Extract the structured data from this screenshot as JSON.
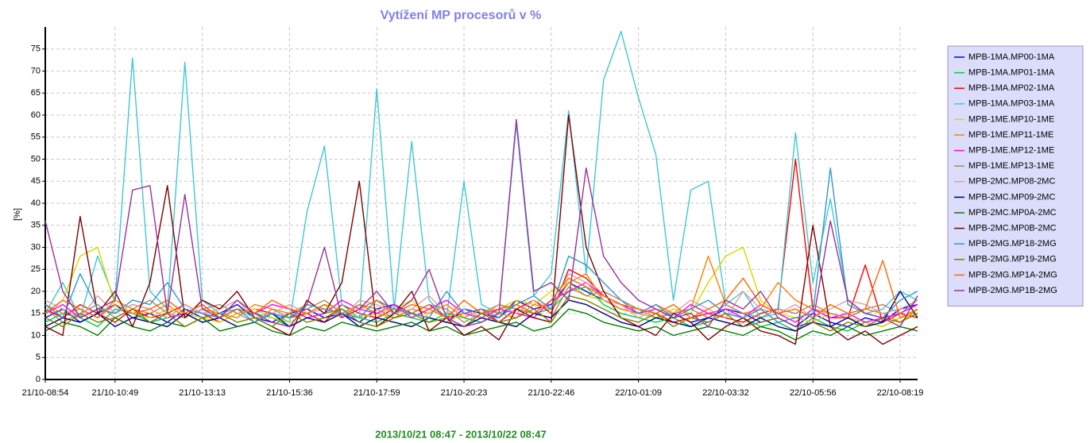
{
  "chart_data": {
    "type": "line",
    "title": "Vytížení MP procesorů v %",
    "x_label": "2013/10/21 08:47 - 2013/10/22 08:47",
    "y_label": "[%]",
    "categories": [
      "21/10-08:54",
      null,
      null,
      null,
      "21/10-10:49",
      null,
      null,
      null,
      null,
      "21/10-13:13",
      null,
      null,
      null,
      null,
      "21/10-15:36",
      null,
      null,
      null,
      null,
      "21/10-17:59",
      null,
      null,
      null,
      null,
      "21/10-20:23",
      null,
      null,
      null,
      null,
      "21/10-22:46",
      null,
      null,
      null,
      null,
      "22/10-01:09",
      null,
      null,
      null,
      null,
      "22/10-03:32",
      null,
      null,
      null,
      null,
      "22/10-05:56",
      null,
      null,
      null,
      null,
      "22/10-08:19",
      null
    ],
    "ylim": [
      0,
      80
    ],
    "yticks": [
      0,
      5,
      10,
      15,
      20,
      25,
      30,
      35,
      40,
      45,
      50,
      55,
      60,
      65,
      70,
      75
    ],
    "grid": true,
    "legend": "right",
    "series": [
      {
        "name": "MPB-1MA.MP00-1MA",
        "color": "#0000ff",
        "values": [
          14,
          16,
          13,
          15,
          17,
          14,
          15,
          13,
          16,
          14,
          15,
          17,
          14,
          13,
          15,
          16,
          14,
          15,
          13,
          16,
          17,
          15,
          14,
          13,
          16,
          15,
          14,
          18,
          16,
          17,
          22,
          20,
          18,
          16,
          15,
          14,
          15,
          13,
          14,
          16,
          15,
          13,
          14,
          12,
          15,
          13,
          12,
          14,
          13,
          16,
          17
        ]
      },
      {
        "name": "MPB-1MA.MP01-1MA",
        "color": "#00cc44",
        "values": [
          13,
          15,
          14,
          12,
          16,
          15,
          13,
          14,
          15,
          13,
          14,
          16,
          15,
          14,
          12,
          14,
          15,
          16,
          14,
          13,
          15,
          14,
          13,
          15,
          14,
          13,
          15,
          17,
          15,
          16,
          20,
          21,
          17,
          15,
          14,
          13,
          14,
          12,
          13,
          15,
          14,
          12,
          13,
          11,
          14,
          12,
          11,
          13,
          12,
          14,
          15
        ]
      },
      {
        "name": "MPB-1MA.MP02-1MA",
        "color": "#ff0000",
        "values": [
          16,
          14,
          17,
          15,
          13,
          16,
          14,
          15,
          17,
          15,
          13,
          15,
          16,
          15,
          14,
          15,
          13,
          17,
          15,
          14,
          16,
          15,
          17,
          14,
          15,
          16,
          13,
          16,
          18,
          15,
          25,
          23,
          19,
          17,
          16,
          15,
          13,
          14,
          15,
          14,
          13,
          15,
          16,
          50,
          16,
          14,
          14,
          26,
          13,
          15,
          14
        ]
      },
      {
        "name": "MPB-1MA.MP03-1MA",
        "color": "#40c8d4",
        "values": [
          15,
          22,
          14,
          28,
          18,
          73,
          20,
          16,
          72,
          18,
          15,
          16,
          14,
          15,
          13,
          38,
          53,
          17,
          14,
          66,
          16,
          54,
          18,
          14,
          45,
          17,
          15,
          58,
          19,
          24,
          61,
          24,
          68,
          79,
          64,
          51,
          18,
          43,
          45,
          17,
          20,
          14,
          15,
          56,
          22,
          41,
          18,
          15,
          16,
          20,
          18
        ]
      },
      {
        "name": "MPB-1ME.MP10-1ME",
        "color": "#d8d800",
        "values": [
          15,
          18,
          28,
          30,
          17,
          15,
          14,
          16,
          15,
          14,
          13,
          15,
          16,
          14,
          13,
          15,
          17,
          16,
          14,
          15,
          16,
          18,
          14,
          13,
          15,
          14,
          16,
          18,
          17,
          20,
          22,
          19,
          18,
          16,
          15,
          14,
          16,
          15,
          22,
          28,
          30,
          18,
          15,
          14,
          13,
          15,
          14,
          13,
          12,
          14,
          15
        ]
      },
      {
        "name": "MPB-1ME.MP11-1ME",
        "color": "#ff8000",
        "values": [
          17,
          15,
          16,
          14,
          18,
          16,
          15,
          17,
          14,
          16,
          15,
          14,
          17,
          16,
          15,
          17,
          16,
          14,
          17,
          15,
          14,
          16,
          15,
          17,
          14,
          16,
          15,
          14,
          17,
          16,
          22,
          24,
          18,
          16,
          15,
          17,
          15,
          16,
          28,
          17,
          15,
          16,
          22,
          18,
          16,
          15,
          14,
          16,
          15,
          13,
          16
        ]
      },
      {
        "name": "MPB-1ME.MP12-1ME",
        "color": "#ff00ff",
        "values": [
          15,
          17,
          14,
          16,
          15,
          17,
          16,
          14,
          15,
          17,
          14,
          16,
          15,
          17,
          16,
          14,
          15,
          18,
          16,
          15,
          17,
          14,
          16,
          18,
          15,
          14,
          16,
          15,
          14,
          18,
          20,
          22,
          19,
          17,
          15,
          16,
          14,
          17,
          15,
          16,
          14,
          17,
          15,
          13,
          16,
          14,
          15,
          13,
          14,
          15,
          17
        ]
      },
      {
        "name": "MPB-1ME.MP13-1ME",
        "color": "#b08868",
        "values": [
          16,
          13,
          15,
          17,
          14,
          16,
          18,
          15,
          14,
          16,
          17,
          15,
          13,
          16,
          14,
          16,
          18,
          15,
          17,
          16,
          14,
          15,
          17,
          16,
          13,
          15,
          17,
          16,
          15,
          14,
          21,
          19,
          20,
          18,
          16,
          14,
          15,
          16,
          14,
          17,
          15,
          14,
          16,
          15,
          17,
          15,
          14,
          16,
          17,
          15,
          18
        ]
      },
      {
        "name": "MPB-2MC.MP08-2MC",
        "color": "#e0a0a0",
        "values": [
          18,
          16,
          14,
          19,
          15,
          17,
          16,
          14,
          17,
          15,
          16,
          18,
          14,
          15,
          17,
          15,
          16,
          14,
          18,
          17,
          15,
          16,
          19,
          15,
          16,
          14,
          17,
          15,
          18,
          16,
          24,
          22,
          18,
          17,
          14,
          16,
          15,
          18,
          16,
          14,
          20,
          16,
          15,
          17,
          14,
          16,
          18,
          17,
          15,
          16,
          18
        ]
      },
      {
        "name": "MPB-2MC.MP09-2MC",
        "color": "#000080",
        "values": [
          12,
          14,
          13,
          15,
          12,
          14,
          13,
          12,
          15,
          13,
          14,
          12,
          13,
          15,
          12,
          14,
          13,
          15,
          12,
          14,
          13,
          12,
          14,
          13,
          12,
          14,
          13,
          12,
          15,
          14,
          18,
          17,
          15,
          13,
          12,
          14,
          13,
          12,
          14,
          13,
          12,
          14,
          12,
          11,
          13,
          12,
          14,
          12,
          13,
          20,
          14
        ]
      },
      {
        "name": "MPB-2MC.MP0A-2MC",
        "color": "#008000",
        "values": [
          11,
          13,
          12,
          10,
          14,
          12,
          11,
          13,
          12,
          14,
          11,
          12,
          13,
          11,
          10,
          12,
          11,
          13,
          12,
          11,
          12,
          13,
          11,
          12,
          10,
          11,
          12,
          13,
          11,
          12,
          16,
          15,
          13,
          12,
          11,
          12,
          10,
          11,
          12,
          11,
          10,
          12,
          11,
          9,
          11,
          10,
          12,
          10,
          11,
          12,
          11
        ]
      },
      {
        "name": "MPB-2MC.MP0B-2MC",
        "color": "#800000",
        "values": [
          12,
          10,
          37,
          15,
          20,
          12,
          22,
          44,
          14,
          18,
          16,
          20,
          14,
          12,
          10,
          18,
          15,
          22,
          45,
          12,
          15,
          20,
          11,
          14,
          10,
          12,
          9,
          16,
          14,
          13,
          60,
          30,
          20,
          14,
          12,
          10,
          15,
          13,
          9,
          12,
          14,
          11,
          10,
          8,
          35,
          12,
          9,
          11,
          8,
          10,
          12
        ]
      },
      {
        "name": "MPB-2MG.MP18-2MG",
        "color": "#3399cc",
        "values": [
          17,
          14,
          24,
          16,
          15,
          18,
          17,
          22,
          16,
          15,
          14,
          16,
          13,
          15,
          14,
          17,
          16,
          15,
          14,
          18,
          16,
          15,
          14,
          20,
          15,
          16,
          14,
          17,
          19,
          16,
          28,
          26,
          22,
          18,
          15,
          17,
          14,
          16,
          18,
          15,
          14,
          16,
          13,
          14,
          15,
          48,
          17,
          15,
          14,
          18,
          20
        ]
      },
      {
        "name": "MPB-2MG.MP19-2MG",
        "color": "#808000",
        "values": [
          14,
          12,
          15,
          13,
          14,
          16,
          13,
          15,
          12,
          14,
          15,
          13,
          14,
          12,
          15,
          13,
          14,
          16,
          13,
          12,
          14,
          15,
          13,
          14,
          12,
          15,
          13,
          14,
          16,
          13,
          19,
          18,
          16,
          14,
          13,
          15,
          12,
          14,
          13,
          15,
          12,
          13,
          14,
          12,
          13,
          11,
          13,
          12,
          14,
          13,
          15
        ]
      },
      {
        "name": "MPB-2MG.MP1A-2MG",
        "color": "#ff6600",
        "values": [
          15,
          18,
          16,
          14,
          17,
          15,
          16,
          18,
          15,
          17,
          14,
          16,
          15,
          18,
          16,
          15,
          17,
          14,
          16,
          18,
          15,
          17,
          16,
          14,
          18,
          15,
          16,
          17,
          15,
          18,
          23,
          21,
          19,
          17,
          16,
          15,
          17,
          14,
          16,
          18,
          23,
          17,
          15,
          16,
          14,
          17,
          15,
          16,
          27,
          14,
          16
        ]
      },
      {
        "name": "MPB-2MG.MP1B-2MG",
        "color": "#993399",
        "values": [
          36,
          20,
          14,
          16,
          18,
          43,
          44,
          15,
          42,
          16,
          14,
          18,
          15,
          13,
          12,
          17,
          30,
          14,
          16,
          20,
          15,
          18,
          25,
          14,
          12,
          13,
          15,
          59,
          20,
          22,
          18,
          48,
          28,
          22,
          18,
          16,
          14,
          15,
          12,
          18,
          16,
          20,
          14,
          12,
          13,
          36,
          18,
          15,
          14,
          12,
          19
        ]
      }
    ]
  }
}
